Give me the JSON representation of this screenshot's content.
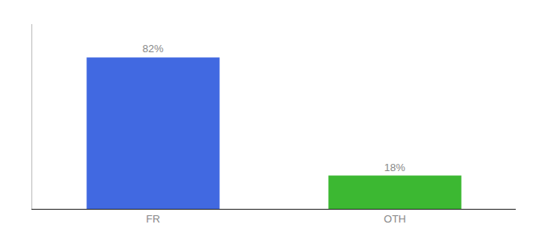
{
  "chart_data": {
    "type": "bar",
    "categories": [
      "FR",
      "OTH"
    ],
    "values": [
      82,
      18
    ],
    "value_labels": [
      "82%",
      "18%"
    ],
    "colors": [
      "#4169e1",
      "#3cb832"
    ],
    "ylim": [
      0,
      100
    ],
    "grid": false,
    "tick_labels": "x"
  }
}
